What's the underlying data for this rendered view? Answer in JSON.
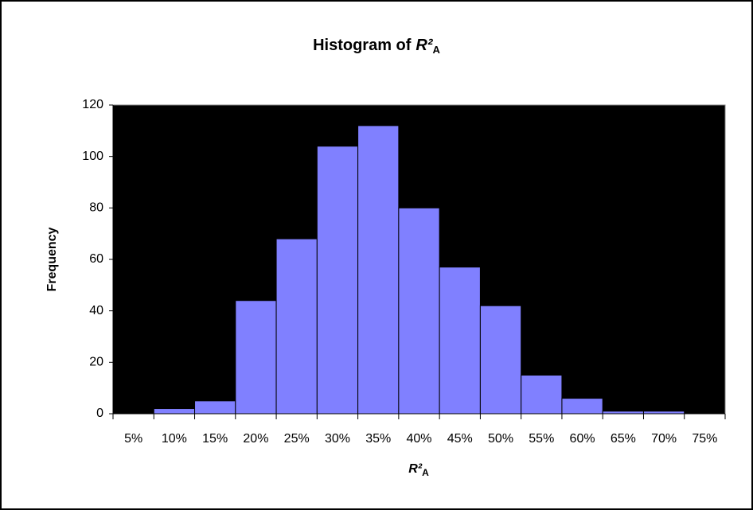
{
  "chart_data": {
    "type": "bar",
    "title": "Histogram of",
    "xlabel": {
      "symbol": "R²",
      "subscript": "A"
    },
    "ylabel": "Frequency",
    "categories": [
      "5%",
      "10%",
      "15%",
      "20%",
      "25%",
      "30%",
      "35%",
      "40%",
      "45%",
      "50%",
      "55%",
      "60%",
      "65%",
      "70%",
      "75%"
    ],
    "values": [
      0,
      2,
      5,
      44,
      68,
      104,
      112,
      80,
      57,
      42,
      15,
      6,
      1,
      1,
      0
    ],
    "color": "#8080ff",
    "plot_background": "#000000",
    "ylim": [
      0,
      120
    ],
    "yticks": [
      0,
      20,
      40,
      60,
      80,
      100,
      120
    ],
    "grid": false
  }
}
